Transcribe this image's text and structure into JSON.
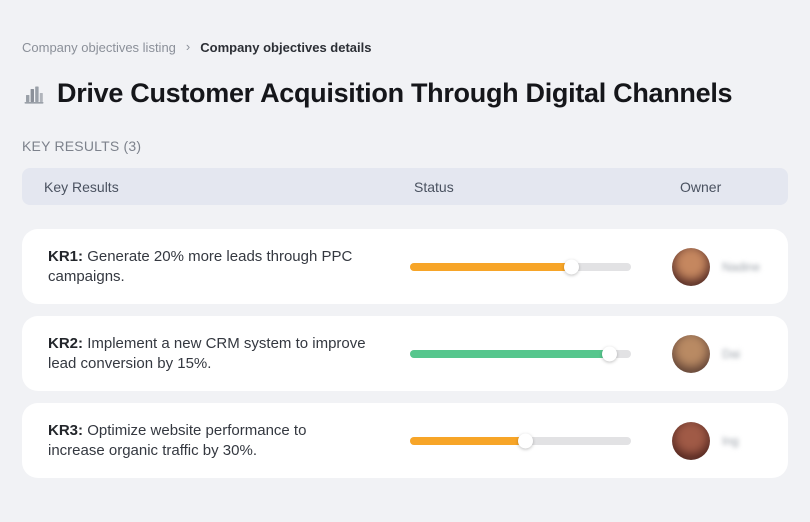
{
  "breadcrumb": {
    "separator": "›",
    "items": [
      {
        "label": "Company objectives listing"
      },
      {
        "label": "Company objectives details"
      }
    ]
  },
  "header": {
    "icon": "bar-chart-icon",
    "title": "Drive Customer Acquisition Through Digital Channels"
  },
  "section": {
    "label": "KEY RESULTS (3)"
  },
  "table": {
    "columns": [
      "Key Results",
      "Status",
      "Owner"
    ],
    "rows": [
      {
        "kr_label": "KR1:",
        "description": "Generate 20% more leads through PPC campaigns.",
        "progress_percent": 73,
        "progress_color": "#F7A528",
        "owner_name": "Nadine",
        "avatar_tones": [
          "#c5875f",
          "#5e3128",
          "#2a1b18"
        ]
      },
      {
        "kr_label": "KR2:",
        "description": "Implement a new CRM system to improve lead conversion by 15%.",
        "progress_percent": 90,
        "progress_color": "#56C68D",
        "owner_name": "Dai",
        "avatar_tones": [
          "#b98a63",
          "#6b4a3a",
          "#332420"
        ]
      },
      {
        "kr_label": "KR3:",
        "description": "Optimize website performance to increase organic traffic by 30%.",
        "progress_percent": 52,
        "progress_color": "#F7A528",
        "owner_name": "Ing",
        "avatar_tones": [
          "#a05a46",
          "#5a2a22",
          "#2e1a17"
        ]
      }
    ]
  },
  "colors": {
    "page_background": "#F1F2F5",
    "table_header_background": "#E4E7F0",
    "card_background": "#FFFFFF",
    "progress_track": "#E2E2E4",
    "progress_orange": "#F7A528",
    "progress_green": "#56C68D"
  }
}
